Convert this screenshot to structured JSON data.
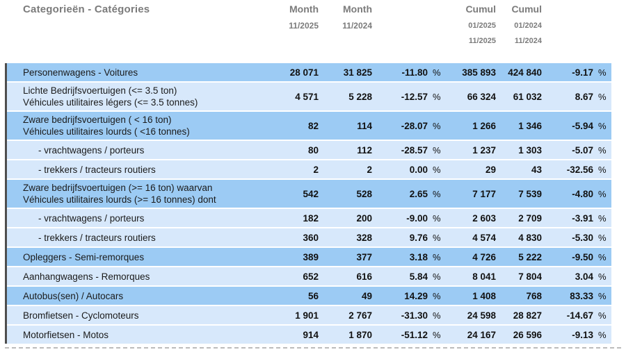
{
  "title_column": "Categorieën - Catégories",
  "percent_sign": "%",
  "header_columns": [
    {
      "label": "Month",
      "dates": [
        "11/2025"
      ]
    },
    {
      "label": "Month",
      "dates": [
        "11/2024"
      ]
    },
    {
      "label": "Cumul",
      "dates": [
        "01/2025",
        "11/2025"
      ]
    },
    {
      "label": "Cumul",
      "dates": [
        "01/2024",
        "11/2024"
      ]
    }
  ],
  "colors": {
    "row_dark": "#9CCBF4",
    "row_light": "#D7E8FB",
    "header_text": "#7B7B7B",
    "text": "#1A1A1A",
    "num_text": "#111111",
    "left_bar": "#4E4E4E",
    "bottom_rule": "#BCBCBC"
  },
  "rows": [
    {
      "label_lines": [
        "Personenwagens - Voitures"
      ],
      "indent": false,
      "shade": "dark",
      "values": {
        "month_current": "28 071",
        "month_previous": "31 825",
        "month_change": "-11.80",
        "cumul_current": "385 893",
        "cumul_previous": "424 840",
        "cumul_change": "-9.17"
      }
    },
    {
      "label_lines": [
        "Lichte Bedrijfsvoertuigen (<= 3.5 ton)",
        "Véhicules utilitaires légers (<= 3.5 tonnes)"
      ],
      "indent": false,
      "shade": "light",
      "values": {
        "month_current": "4 571",
        "month_previous": "5 228",
        "month_change": "-12.57",
        "cumul_current": "66 324",
        "cumul_previous": "61 032",
        "cumul_change": "8.67"
      }
    },
    {
      "label_lines": [
        "Zware bedrijfsvoertuigen ( < 16 ton)",
        "Véhicules utilitaires lourds ( <16 tonnes)"
      ],
      "indent": false,
      "shade": "dark",
      "values": {
        "month_current": "82",
        "month_previous": "114",
        "month_change": "-28.07",
        "cumul_current": "1 266",
        "cumul_previous": "1 346",
        "cumul_change": "-5.94"
      }
    },
    {
      "label_lines": [
        "- vrachtwagens / porteurs"
      ],
      "indent": true,
      "shade": "light",
      "values": {
        "month_current": "80",
        "month_previous": "112",
        "month_change": "-28.57",
        "cumul_current": "1 237",
        "cumul_previous": "1 303",
        "cumul_change": "-5.07"
      }
    },
    {
      "label_lines": [
        "- trekkers / tracteurs routiers"
      ],
      "indent": true,
      "shade": "light",
      "values": {
        "month_current": "2",
        "month_previous": "2",
        "month_change": "0.00",
        "cumul_current": "29",
        "cumul_previous": "43",
        "cumul_change": "-32.56"
      }
    },
    {
      "label_lines": [
        "Zware bedrijfsvoertuigen (>= 16 ton) waarvan",
        "Véhicules utilitaires lourds (>= 16 tonnes) dont"
      ],
      "indent": false,
      "shade": "dark",
      "values": {
        "month_current": "542",
        "month_previous": "528",
        "month_change": "2.65",
        "cumul_current": "7 177",
        "cumul_previous": "7 539",
        "cumul_change": "-4.80"
      }
    },
    {
      "label_lines": [
        "- vrachtwagens / porteurs"
      ],
      "indent": true,
      "shade": "light",
      "values": {
        "month_current": "182",
        "month_previous": "200",
        "month_change": "-9.00",
        "cumul_current": "2 603",
        "cumul_previous": "2 709",
        "cumul_change": "-3.91"
      }
    },
    {
      "label_lines": [
        "- trekkers / tracteurs routiers"
      ],
      "indent": true,
      "shade": "light",
      "values": {
        "month_current": "360",
        "month_previous": "328",
        "month_change": "9.76",
        "cumul_current": "4 574",
        "cumul_previous": "4 830",
        "cumul_change": "-5.30"
      }
    },
    {
      "label_lines": [
        "Opleggers - Semi-remorques"
      ],
      "indent": false,
      "shade": "dark",
      "values": {
        "month_current": "389",
        "month_previous": "377",
        "month_change": "3.18",
        "cumul_current": "4 726",
        "cumul_previous": "5 222",
        "cumul_change": "-9.50"
      }
    },
    {
      "label_lines": [
        "Aanhangwagens - Remorques"
      ],
      "indent": false,
      "shade": "light",
      "values": {
        "month_current": "652",
        "month_previous": "616",
        "month_change": "5.84",
        "cumul_current": "8 041",
        "cumul_previous": "7 804",
        "cumul_change": "3.04"
      }
    },
    {
      "label_lines": [
        "Autobus(sen) / Autocars"
      ],
      "indent": false,
      "shade": "dark",
      "values": {
        "month_current": "56",
        "month_previous": "49",
        "month_change": "14.29",
        "cumul_current": "1 408",
        "cumul_previous": "768",
        "cumul_change": "83.33"
      }
    },
    {
      "label_lines": [
        "Bromfietsen - Cyclomoteurs"
      ],
      "indent": false,
      "shade": "light",
      "values": {
        "month_current": "1 901",
        "month_previous": "2 767",
        "month_change": "-31.30",
        "cumul_current": "24 598",
        "cumul_previous": "28 827",
        "cumul_change": "-14.67"
      }
    },
    {
      "label_lines": [
        "Motorfietsen - Motos"
      ],
      "indent": false,
      "shade": "light",
      "values": {
        "month_current": "914",
        "month_previous": "1 870",
        "month_change": "-51.12",
        "cumul_current": "24 167",
        "cumul_previous": "26 596",
        "cumul_change": "-9.13"
      }
    }
  ]
}
